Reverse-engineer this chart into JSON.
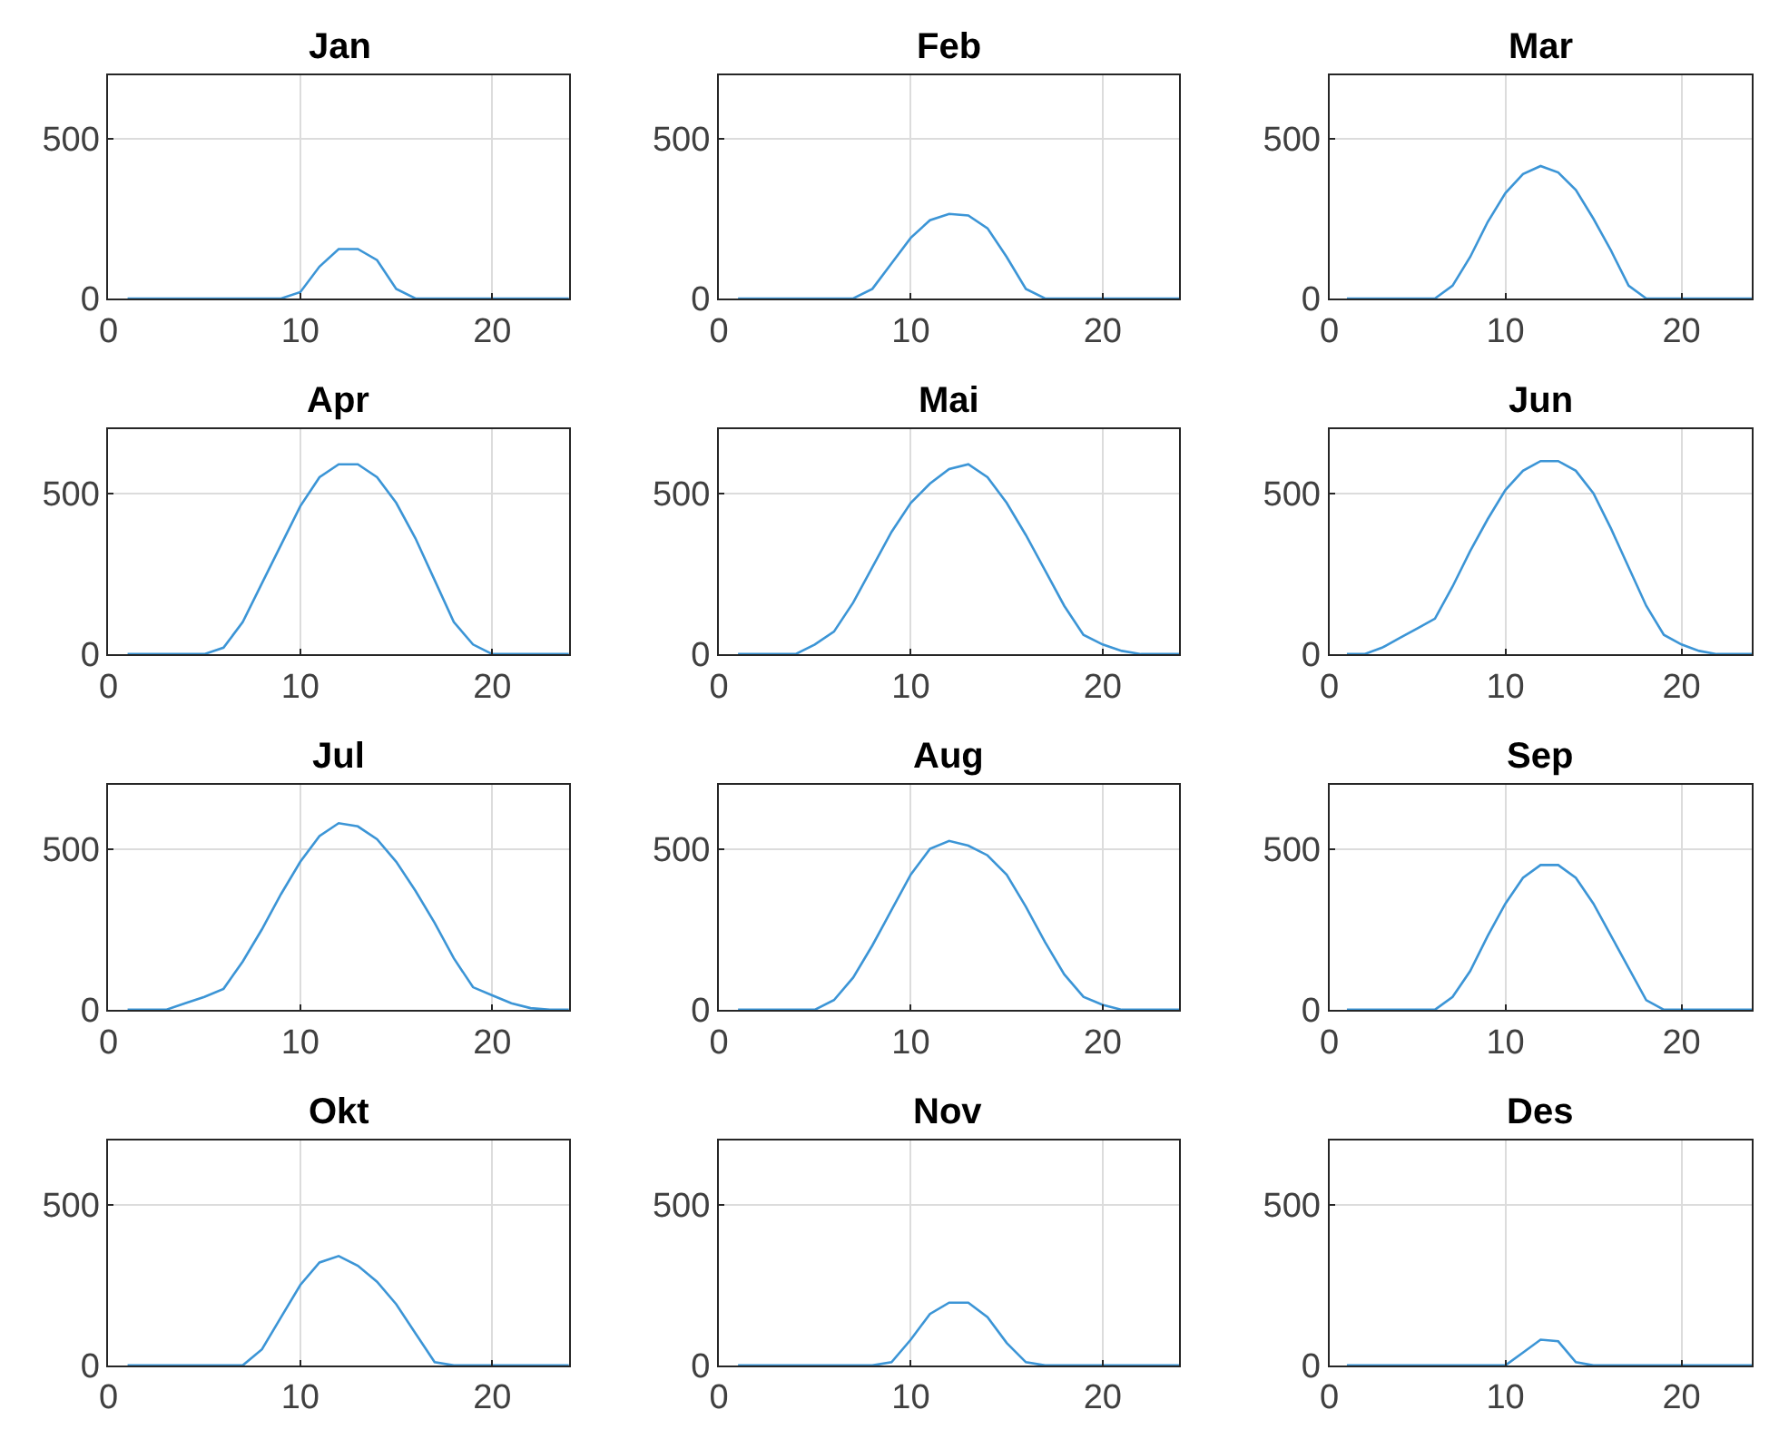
{
  "chart_data": [
    {
      "type": "line",
      "title": "Jan",
      "x": [
        1,
        2,
        3,
        4,
        5,
        6,
        7,
        8,
        9,
        10,
        11,
        12,
        13,
        14,
        15,
        16,
        17,
        18,
        19,
        20,
        21,
        22,
        23,
        24
      ],
      "values": [
        0,
        0,
        0,
        0,
        0,
        0,
        0,
        0,
        0,
        20,
        100,
        155,
        155,
        120,
        30,
        0,
        0,
        0,
        0,
        0,
        0,
        0,
        0,
        0
      ],
      "color": "#3c95d6",
      "xlim": [
        0,
        24
      ],
      "ylim": [
        0,
        700
      ],
      "xticks": [
        0,
        10,
        20
      ],
      "yticks": [
        0,
        500
      ],
      "grid": true
    },
    {
      "type": "line",
      "title": "Feb",
      "x": [
        1,
        2,
        3,
        4,
        5,
        6,
        7,
        8,
        9,
        10,
        11,
        12,
        13,
        14,
        15,
        16,
        17,
        18,
        19,
        20,
        21,
        22,
        23,
        24
      ],
      "values": [
        0,
        0,
        0,
        0,
        0,
        0,
        0,
        30,
        110,
        190,
        245,
        265,
        260,
        220,
        130,
        30,
        0,
        0,
        0,
        0,
        0,
        0,
        0,
        0
      ],
      "color": "#3c95d6",
      "xlim": [
        0,
        24
      ],
      "ylim": [
        0,
        700
      ],
      "xticks": [
        0,
        10,
        20
      ],
      "yticks": [
        0,
        500
      ],
      "grid": true
    },
    {
      "type": "line",
      "title": "Mar",
      "x": [
        1,
        2,
        3,
        4,
        5,
        6,
        7,
        8,
        9,
        10,
        11,
        12,
        13,
        14,
        15,
        16,
        17,
        18,
        19,
        20,
        21,
        22,
        23,
        24
      ],
      "values": [
        0,
        0,
        0,
        0,
        0,
        0,
        40,
        130,
        240,
        330,
        390,
        415,
        395,
        340,
        250,
        150,
        40,
        0,
        0,
        0,
        0,
        0,
        0,
        0
      ],
      "color": "#3c95d6",
      "xlim": [
        0,
        24
      ],
      "ylim": [
        0,
        700
      ],
      "xticks": [
        0,
        10,
        20
      ],
      "yticks": [
        0,
        500
      ],
      "grid": true
    },
    {
      "type": "line",
      "title": "Apr",
      "x": [
        1,
        2,
        3,
        4,
        5,
        6,
        7,
        8,
        9,
        10,
        11,
        12,
        13,
        14,
        15,
        16,
        17,
        18,
        19,
        20,
        21,
        22,
        23,
        24
      ],
      "values": [
        0,
        0,
        0,
        0,
        0,
        20,
        100,
        220,
        340,
        460,
        550,
        590,
        590,
        550,
        470,
        360,
        230,
        100,
        30,
        0,
        0,
        0,
        0,
        0
      ],
      "color": "#3c95d6",
      "xlim": [
        0,
        24
      ],
      "ylim": [
        0,
        700
      ],
      "xticks": [
        0,
        10,
        20
      ],
      "yticks": [
        0,
        500
      ],
      "grid": true
    },
    {
      "type": "line",
      "title": "Mai",
      "x": [
        1,
        2,
        3,
        4,
        5,
        6,
        7,
        8,
        9,
        10,
        11,
        12,
        13,
        14,
        15,
        16,
        17,
        18,
        19,
        20,
        21,
        22,
        23,
        24
      ],
      "values": [
        0,
        0,
        0,
        0,
        30,
        70,
        160,
        270,
        380,
        470,
        530,
        575,
        590,
        550,
        470,
        370,
        260,
        150,
        60,
        30,
        10,
        0,
        0,
        0
      ],
      "color": "#3c95d6",
      "xlim": [
        0,
        24
      ],
      "ylim": [
        0,
        700
      ],
      "xticks": [
        0,
        10,
        20
      ],
      "yticks": [
        0,
        500
      ],
      "grid": true
    },
    {
      "type": "line",
      "title": "Jun",
      "x": [
        1,
        2,
        3,
        4,
        5,
        6,
        7,
        8,
        9,
        10,
        11,
        12,
        13,
        14,
        15,
        16,
        17,
        18,
        19,
        20,
        21,
        22,
        23,
        24
      ],
      "values": [
        0,
        0,
        20,
        50,
        80,
        110,
        210,
        320,
        420,
        510,
        570,
        600,
        600,
        570,
        500,
        390,
        270,
        150,
        60,
        30,
        10,
        0,
        0,
        0
      ],
      "color": "#3c95d6",
      "xlim": [
        0,
        24
      ],
      "ylim": [
        0,
        700
      ],
      "xticks": [
        0,
        10,
        20
      ],
      "yticks": [
        0,
        500
      ],
      "grid": true
    },
    {
      "type": "line",
      "title": "Jul",
      "x": [
        1,
        2,
        3,
        4,
        5,
        6,
        7,
        8,
        9,
        10,
        11,
        12,
        13,
        14,
        15,
        16,
        17,
        18,
        19,
        20,
        21,
        22,
        23,
        24
      ],
      "values": [
        0,
        0,
        0,
        20,
        40,
        65,
        150,
        250,
        360,
        460,
        540,
        580,
        570,
        530,
        460,
        370,
        270,
        160,
        70,
        45,
        20,
        5,
        0,
        0
      ],
      "color": "#3c95d6",
      "xlim": [
        0,
        24
      ],
      "ylim": [
        0,
        700
      ],
      "xticks": [
        0,
        10,
        20
      ],
      "yticks": [
        0,
        500
      ],
      "grid": true
    },
    {
      "type": "line",
      "title": "Aug",
      "x": [
        1,
        2,
        3,
        4,
        5,
        6,
        7,
        8,
        9,
        10,
        11,
        12,
        13,
        14,
        15,
        16,
        17,
        18,
        19,
        20,
        21,
        22,
        23,
        24
      ],
      "values": [
        0,
        0,
        0,
        0,
        0,
        30,
        100,
        200,
        310,
        420,
        500,
        525,
        510,
        480,
        420,
        320,
        210,
        110,
        40,
        15,
        0,
        0,
        0,
        0
      ],
      "color": "#3c95d6",
      "xlim": [
        0,
        24
      ],
      "ylim": [
        0,
        700
      ],
      "xticks": [
        0,
        10,
        20
      ],
      "yticks": [
        0,
        500
      ],
      "grid": true
    },
    {
      "type": "line",
      "title": "Sep",
      "x": [
        1,
        2,
        3,
        4,
        5,
        6,
        7,
        8,
        9,
        10,
        11,
        12,
        13,
        14,
        15,
        16,
        17,
        18,
        19,
        20,
        21,
        22,
        23,
        24
      ],
      "values": [
        0,
        0,
        0,
        0,
        0,
        0,
        40,
        120,
        230,
        330,
        410,
        450,
        450,
        410,
        330,
        230,
        130,
        30,
        0,
        0,
        0,
        0,
        0,
        0
      ],
      "color": "#3c95d6",
      "xlim": [
        0,
        24
      ],
      "ylim": [
        0,
        700
      ],
      "xticks": [
        0,
        10,
        20
      ],
      "yticks": [
        0,
        500
      ],
      "grid": true
    },
    {
      "type": "line",
      "title": "Okt",
      "x": [
        1,
        2,
        3,
        4,
        5,
        6,
        7,
        8,
        9,
        10,
        11,
        12,
        13,
        14,
        15,
        16,
        17,
        18,
        19,
        20,
        21,
        22,
        23,
        24
      ],
      "values": [
        0,
        0,
        0,
        0,
        0,
        0,
        0,
        50,
        150,
        250,
        320,
        340,
        310,
        260,
        190,
        100,
        10,
        0,
        0,
        0,
        0,
        0,
        0,
        0
      ],
      "color": "#3c95d6",
      "xlim": [
        0,
        24
      ],
      "ylim": [
        0,
        700
      ],
      "xticks": [
        0,
        10,
        20
      ],
      "yticks": [
        0,
        500
      ],
      "grid": true
    },
    {
      "type": "line",
      "title": "Nov",
      "x": [
        1,
        2,
        3,
        4,
        5,
        6,
        7,
        8,
        9,
        10,
        11,
        12,
        13,
        14,
        15,
        16,
        17,
        18,
        19,
        20,
        21,
        22,
        23,
        24
      ],
      "values": [
        0,
        0,
        0,
        0,
        0,
        0,
        0,
        0,
        10,
        80,
        160,
        195,
        195,
        150,
        70,
        10,
        0,
        0,
        0,
        0,
        0,
        0,
        0,
        0
      ],
      "color": "#3c95d6",
      "xlim": [
        0,
        24
      ],
      "ylim": [
        0,
        700
      ],
      "xticks": [
        0,
        10,
        20
      ],
      "yticks": [
        0,
        500
      ],
      "grid": true
    },
    {
      "type": "line",
      "title": "Des",
      "x": [
        1,
        2,
        3,
        4,
        5,
        6,
        7,
        8,
        9,
        10,
        11,
        12,
        13,
        14,
        15,
        16,
        17,
        18,
        19,
        20,
        21,
        22,
        23,
        24
      ],
      "values": [
        0,
        0,
        0,
        0,
        0,
        0,
        0,
        0,
        0,
        0,
        40,
        80,
        75,
        10,
        0,
        0,
        0,
        0,
        0,
        0,
        0,
        0,
        0,
        0
      ],
      "color": "#3c95d6",
      "xlim": [
        0,
        24
      ],
      "ylim": [
        0,
        700
      ],
      "xticks": [
        0,
        10,
        20
      ],
      "yticks": [
        0,
        500
      ],
      "grid": true
    }
  ]
}
